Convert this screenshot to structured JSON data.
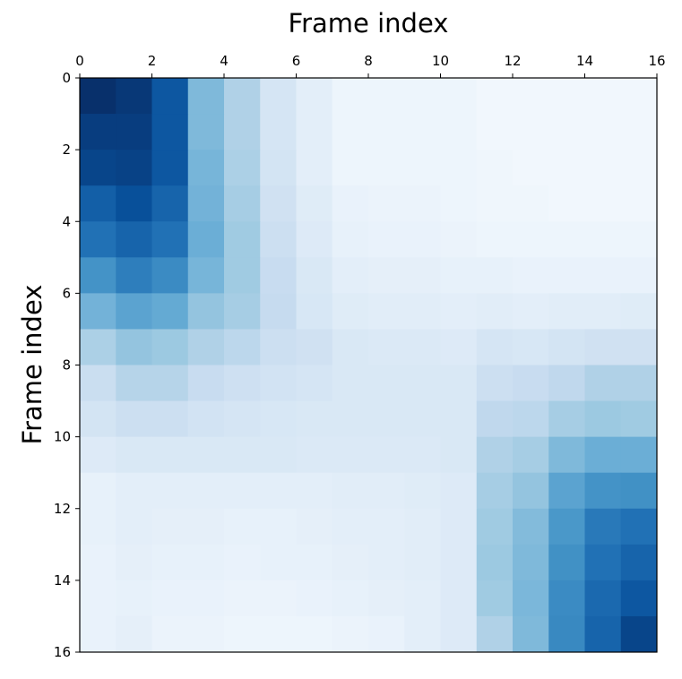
{
  "chart_data": {
    "type": "heatmap",
    "xlabel": "Frame index",
    "ylabel": "Frame index",
    "colormap": "Blues",
    "xlim": [
      0,
      16
    ],
    "xticks": [
      0,
      2,
      4,
      6,
      8,
      10,
      12,
      14,
      16
    ],
    "ylim": [
      16,
      0
    ],
    "yticks": [
      0,
      2,
      4,
      6,
      8,
      10,
      12,
      14,
      16
    ],
    "z": [
      [
        1.0,
        0.97,
        0.85,
        0.45,
        0.32,
        0.17,
        0.1,
        0.05,
        0.05,
        0.05,
        0.05,
        0.03,
        0.03,
        0.03,
        0.03,
        0.03
      ],
      [
        0.95,
        0.95,
        0.85,
        0.45,
        0.32,
        0.17,
        0.1,
        0.05,
        0.05,
        0.05,
        0.05,
        0.03,
        0.03,
        0.03,
        0.03,
        0.03
      ],
      [
        0.92,
        0.93,
        0.85,
        0.47,
        0.33,
        0.18,
        0.1,
        0.05,
        0.05,
        0.05,
        0.05,
        0.04,
        0.03,
        0.03,
        0.03,
        0.03
      ],
      [
        0.82,
        0.88,
        0.8,
        0.48,
        0.35,
        0.2,
        0.12,
        0.07,
        0.06,
        0.06,
        0.05,
        0.04,
        0.04,
        0.03,
        0.03,
        0.03
      ],
      [
        0.75,
        0.8,
        0.75,
        0.5,
        0.37,
        0.22,
        0.13,
        0.08,
        0.07,
        0.07,
        0.06,
        0.05,
        0.05,
        0.05,
        0.05,
        0.05
      ],
      [
        0.62,
        0.7,
        0.65,
        0.47,
        0.37,
        0.24,
        0.15,
        0.1,
        0.09,
        0.09,
        0.08,
        0.08,
        0.07,
        0.07,
        0.07,
        0.07
      ],
      [
        0.48,
        0.55,
        0.52,
        0.4,
        0.35,
        0.25,
        0.16,
        0.12,
        0.11,
        0.11,
        0.1,
        0.11,
        0.1,
        0.11,
        0.11,
        0.12
      ],
      [
        0.33,
        0.4,
        0.38,
        0.32,
        0.28,
        0.22,
        0.2,
        0.15,
        0.14,
        0.14,
        0.13,
        0.17,
        0.16,
        0.18,
        0.2,
        0.2
      ],
      [
        0.23,
        0.3,
        0.3,
        0.24,
        0.21,
        0.19,
        0.17,
        0.15,
        0.15,
        0.15,
        0.15,
        0.22,
        0.24,
        0.27,
        0.32,
        0.32
      ],
      [
        0.18,
        0.22,
        0.22,
        0.19,
        0.17,
        0.16,
        0.15,
        0.15,
        0.15,
        0.15,
        0.15,
        0.27,
        0.28,
        0.35,
        0.38,
        0.37
      ],
      [
        0.13,
        0.15,
        0.15,
        0.15,
        0.15,
        0.15,
        0.14,
        0.14,
        0.14,
        0.14,
        0.15,
        0.32,
        0.35,
        0.45,
        0.5,
        0.5
      ],
      [
        0.08,
        0.1,
        0.1,
        0.1,
        0.1,
        0.1,
        0.1,
        0.11,
        0.11,
        0.12,
        0.13,
        0.35,
        0.4,
        0.55,
        0.62,
        0.63
      ],
      [
        0.08,
        0.1,
        0.09,
        0.09,
        0.08,
        0.08,
        0.09,
        0.1,
        0.1,
        0.11,
        0.13,
        0.37,
        0.44,
        0.6,
        0.72,
        0.75
      ],
      [
        0.07,
        0.09,
        0.08,
        0.08,
        0.07,
        0.08,
        0.08,
        0.09,
        0.1,
        0.11,
        0.13,
        0.38,
        0.45,
        0.63,
        0.75,
        0.8
      ],
      [
        0.07,
        0.08,
        0.07,
        0.07,
        0.06,
        0.06,
        0.07,
        0.08,
        0.09,
        0.1,
        0.13,
        0.37,
        0.46,
        0.65,
        0.78,
        0.85
      ],
      [
        0.07,
        0.09,
        0.06,
        0.06,
        0.05,
        0.05,
        0.05,
        0.06,
        0.07,
        0.1,
        0.13,
        0.32,
        0.45,
        0.66,
        0.8,
        0.92
      ]
    ]
  }
}
